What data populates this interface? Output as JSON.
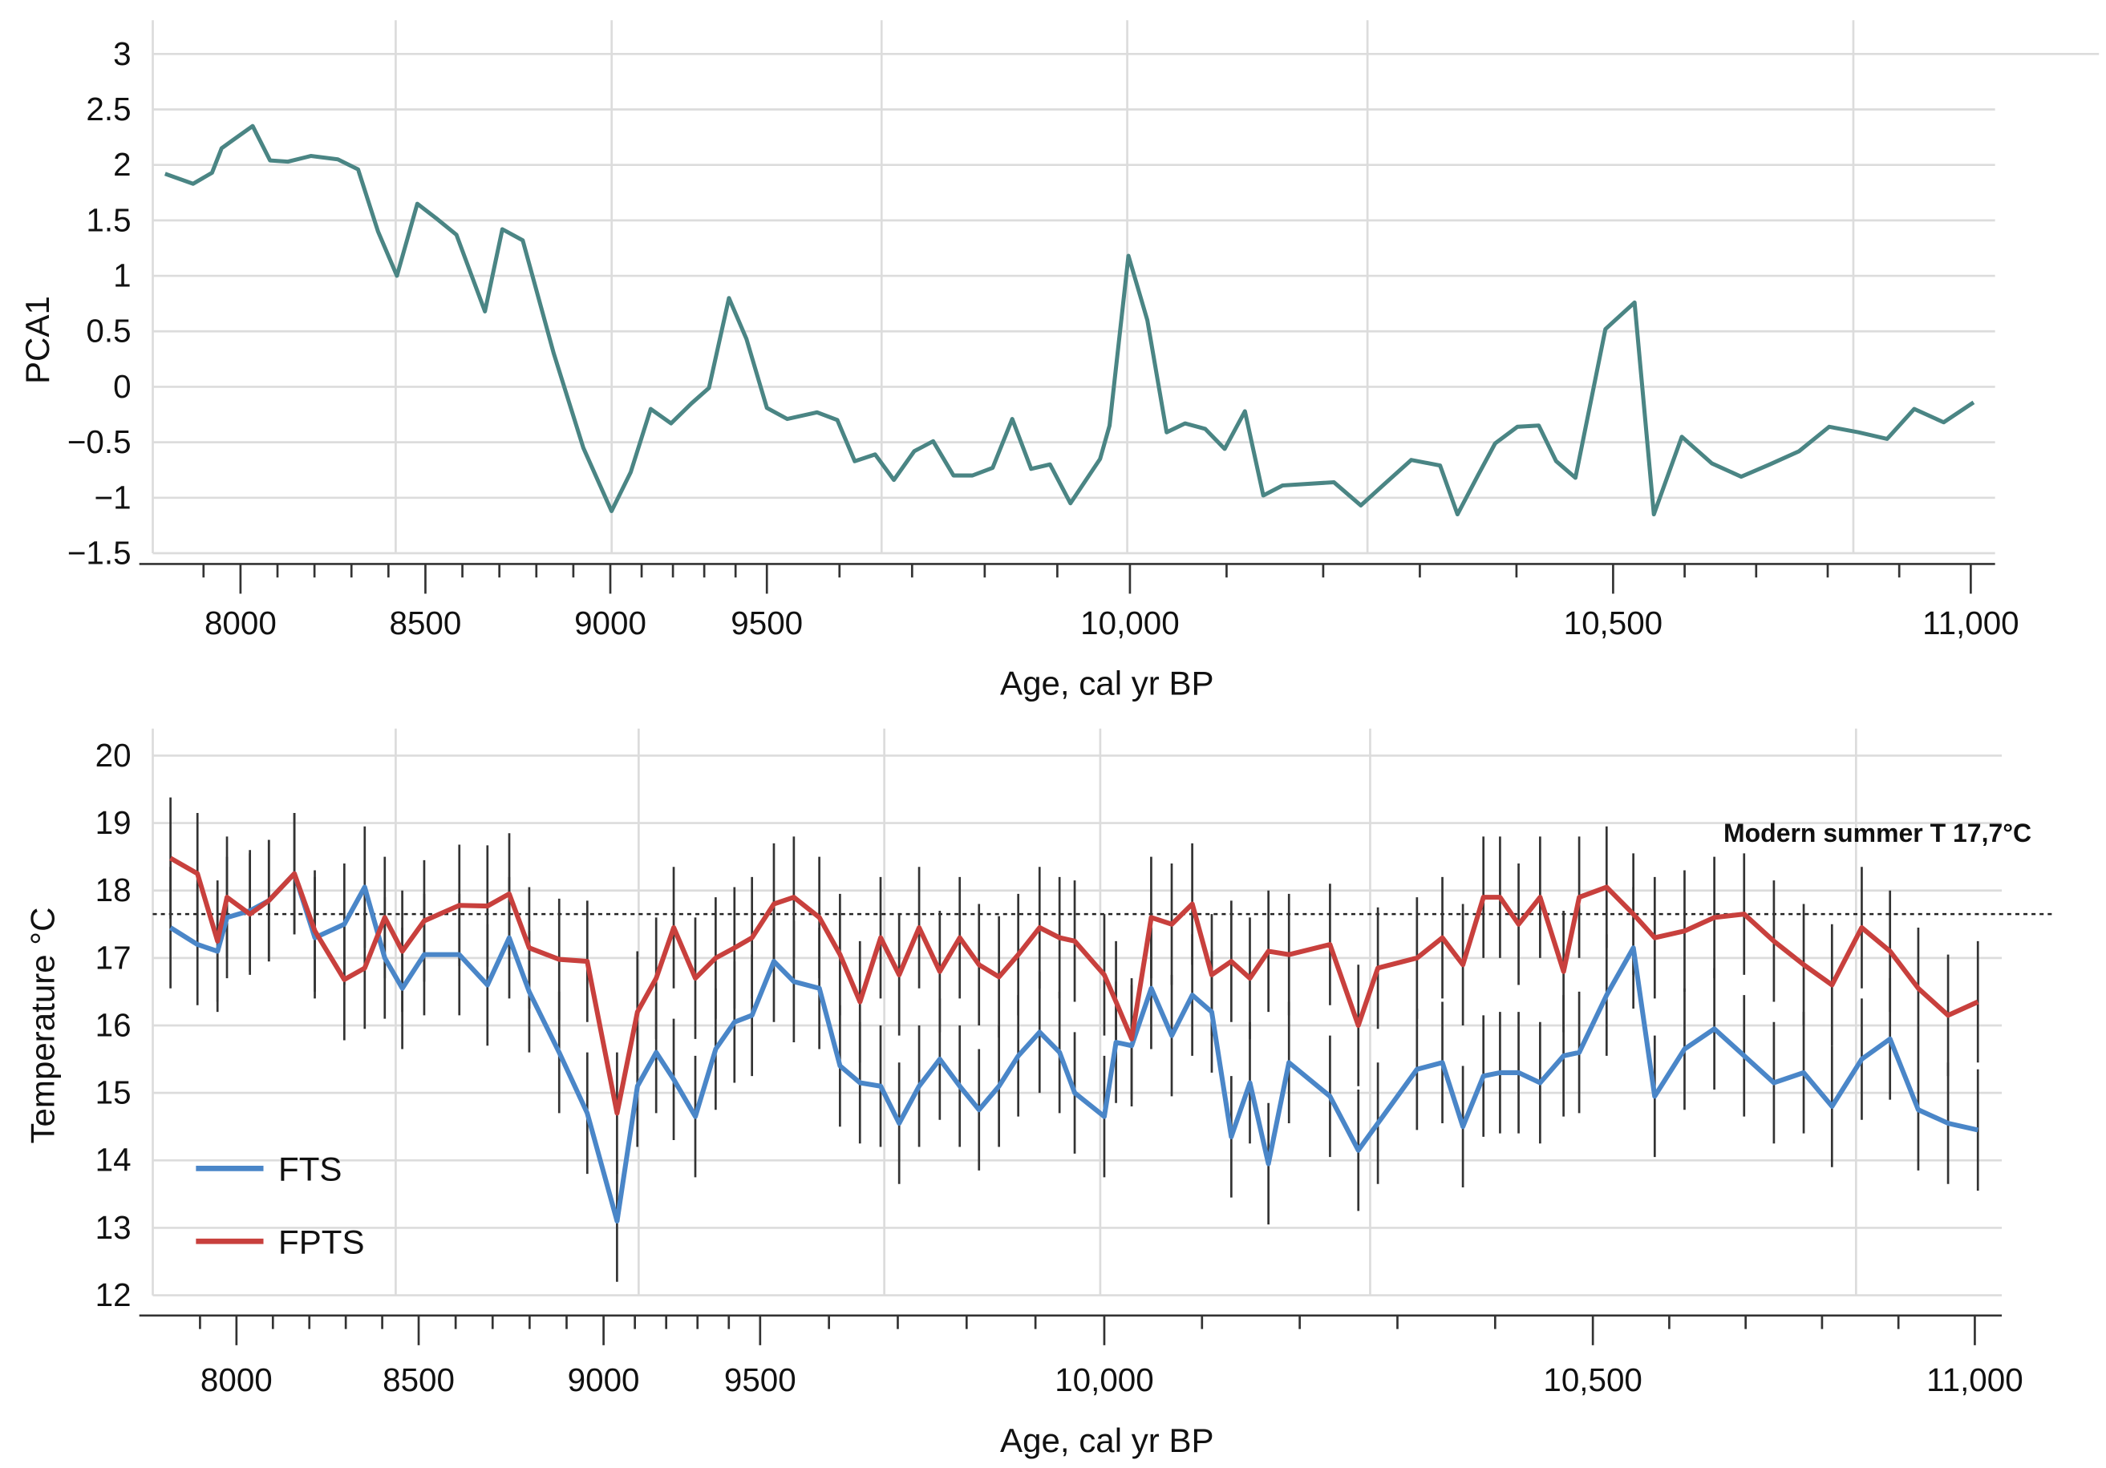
{
  "chart_data": [
    {
      "type": "line",
      "ylabel": "PCA1",
      "xlabel": "Age, cal yr BP",
      "ylim": [
        -1.5,
        3
      ],
      "yticks": [
        "3",
        "2.5",
        "2",
        "1.5",
        "1",
        "0.5",
        "0",
        "−0.5",
        "−1",
        "−1.5"
      ],
      "ytick_values": [
        3,
        2.5,
        2,
        1.5,
        1,
        0.5,
        0,
        -0.5,
        -1,
        -1.5
      ],
      "xticks": [
        "8000",
        "8500",
        "9000",
        "9500",
        "10,000",
        "10,500",
        "11,000"
      ],
      "xtick_values": [
        8000,
        8500,
        9000,
        9500,
        10000,
        10500,
        11000
      ],
      "grid": true,
      "series": [
        {
          "name": "PCA1",
          "color": "#4a8584",
          "x": [
            7796,
            7872,
            7923,
            7949,
            7978,
            8033,
            8080,
            8128,
            8190,
            8263,
            8318,
            8372,
            8423,
            8478,
            8529,
            8584,
            8661,
            8708,
            8763,
            8847,
            8927,
            9004,
            9065,
            9129,
            9194,
            9259,
            9315,
            9379,
            9435,
            9500,
            9528,
            9569,
            9597,
            9621,
            9649,
            9675,
            9703,
            9729,
            9757,
            9783,
            9811,
            9838,
            9864,
            9890,
            9918,
            9959,
            9972,
            9998,
            10018,
            10038,
            10057,
            10078,
            10098,
            10119,
            10138,
            10158,
            10211,
            10239,
            10263,
            10291,
            10321,
            10339,
            10360,
            10378,
            10401,
            10423,
            10441,
            10461,
            10492,
            10530,
            10557,
            10596,
            10638,
            10679,
            10719,
            10760,
            10802,
            10843,
            10883,
            10921,
            10962,
            11004
          ],
          "y": [
            1.92,
            1.83,
            1.93,
            2.15,
            2.22,
            2.35,
            2.04,
            2.03,
            2.08,
            2.05,
            1.96,
            1.4,
            1.0,
            1.65,
            1.52,
            1.37,
            0.68,
            1.42,
            1.32,
            0.3,
            -0.55,
            -1.12,
            -0.77,
            -0.2,
            -0.33,
            -0.15,
            -0.01,
            0.8,
            0.43,
            -0.19,
            -0.29,
            -0.23,
            -0.3,
            -0.67,
            -0.61,
            -0.84,
            -0.58,
            -0.49,
            -0.8,
            -0.8,
            -0.73,
            -0.29,
            -0.74,
            -0.7,
            -1.05,
            -0.65,
            -0.35,
            1.18,
            0.6,
            -0.41,
            -0.33,
            -0.38,
            -0.56,
            -0.22,
            -0.98,
            -0.89,
            -0.86,
            -1.07,
            -0.88,
            -0.66,
            -0.71,
            -1.15,
            -0.8,
            -0.51,
            -0.36,
            -0.35,
            -0.67,
            -0.82,
            0.52,
            0.76,
            -1.15,
            -0.45,
            -0.69,
            -0.81,
            -0.7,
            -0.58,
            -0.36,
            -0.41,
            -0.47,
            -0.2,
            -0.32,
            -0.14
          ]
        }
      ]
    },
    {
      "type": "line",
      "ylabel": "Temperature °C",
      "xlabel": "Age, cal yr BP",
      "ylim": [
        12,
        20
      ],
      "yticks": [
        "20",
        "19",
        "18",
        "17",
        "16",
        "15",
        "14",
        "13",
        "12"
      ],
      "ytick_values": [
        20,
        19,
        18,
        17,
        16,
        15,
        14,
        13,
        12
      ],
      "xticks": [
        "8000",
        "8500",
        "9000",
        "9500",
        "10,000",
        "10,500",
        "11,000"
      ],
      "xtick_values": [
        8000,
        8500,
        9000,
        9500,
        10000,
        10500,
        11000
      ],
      "grid": true,
      "legend_position": "bottom-left",
      "reference_line": {
        "value": 17.65,
        "label": "Modern summer T  17,7°C"
      },
      "error": 0.9,
      "x": [
        7819,
        7893,
        7948,
        7974,
        8037,
        8089,
        8159,
        8215,
        8296,
        8352,
        8407,
        8455,
        8515,
        8610,
        8686,
        8745,
        8799,
        8880,
        8956,
        9043,
        9108,
        9168,
        9224,
        9293,
        9358,
        9418,
        9474,
        9520,
        9549,
        9586,
        9616,
        9645,
        9675,
        9702,
        9731,
        9761,
        9790,
        9818,
        9847,
        9875,
        9906,
        9935,
        9957,
        10000,
        10012,
        10028,
        10048,
        10069,
        10090,
        10110,
        10130,
        10149,
        10168,
        10189,
        10231,
        10260,
        10280,
        10320,
        10346,
        10367,
        10388,
        10405,
        10424,
        10446,
        10470,
        10486,
        10518,
        10553,
        10581,
        10620,
        10659,
        10698,
        10737,
        10776,
        10813,
        10852,
        10889,
        10926,
        10965,
        11004
      ],
      "series": [
        {
          "name": "FTS",
          "color": "#4a86c8",
          "values": [
            17.45,
            17.2,
            17.1,
            17.6,
            17.7,
            17.85,
            18.25,
            17.3,
            17.5,
            18.05,
            17.0,
            16.55,
            17.05,
            17.05,
            16.6,
            17.3,
            16.5,
            15.6,
            14.7,
            13.1,
            15.1,
            15.6,
            15.2,
            14.65,
            15.65,
            16.05,
            16.15,
            16.95,
            16.65,
            16.55,
            15.4,
            15.15,
            15.1,
            14.55,
            15.1,
            15.5,
            15.1,
            14.75,
            15.1,
            15.55,
            15.9,
            15.6,
            15.0,
            14.65,
            15.75,
            15.7,
            16.55,
            15.85,
            16.45,
            16.2,
            14.35,
            15.15,
            13.95,
            15.45,
            14.95,
            14.15,
            14.55,
            15.35,
            15.45,
            14.5,
            15.25,
            15.3,
            15.3,
            15.15,
            15.55,
            15.6,
            16.45,
            17.15,
            14.95,
            15.65,
            15.95,
            15.55,
            15.15,
            15.3,
            14.8,
            15.5,
            15.8,
            14.75,
            14.55,
            14.45
          ]
        },
        {
          "name": "FPTS",
          "color": "#c8403d",
          "values": [
            18.48,
            18.25,
            17.25,
            17.9,
            17.65,
            17.85,
            18.25,
            17.4,
            16.68,
            16.85,
            17.6,
            17.1,
            17.55,
            17.78,
            17.77,
            17.95,
            17.15,
            16.98,
            16.95,
            14.7,
            16.2,
            16.7,
            17.45,
            16.7,
            17.0,
            17.15,
            17.3,
            17.8,
            17.9,
            17.6,
            17.05,
            16.35,
            17.3,
            16.75,
            17.45,
            16.8,
            17.3,
            16.9,
            16.72,
            17.05,
            17.45,
            17.3,
            17.25,
            16.75,
            16.35,
            15.8,
            17.6,
            17.5,
            17.8,
            16.75,
            16.95,
            16.7,
            17.1,
            17.05,
            17.2,
            16.0,
            16.85,
            17.0,
            17.3,
            16.9,
            17.9,
            17.9,
            17.5,
            17.9,
            16.8,
            17.9,
            18.05,
            17.65,
            17.3,
            17.4,
            17.6,
            17.65,
            17.25,
            16.9,
            16.6,
            17.45,
            17.1,
            16.55,
            16.15,
            16.35
          ]
        }
      ]
    }
  ]
}
